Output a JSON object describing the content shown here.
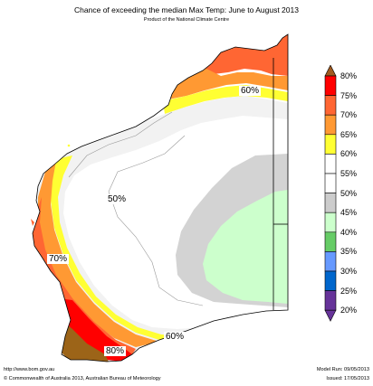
{
  "header": {
    "title": "Chance of exceeding the median Max Temp: June to August 2013",
    "subtitle": "Product of the National Climate Centre"
  },
  "map": {
    "labels": [
      "60%",
      "50%",
      "70%",
      "60%",
      "80%"
    ]
  },
  "legend": {
    "bins": [
      {
        "label": "80%",
        "color": "#ff0000"
      },
      {
        "label": "75%",
        "color": "#ff6633"
      },
      {
        "label": "70%",
        "color": "#ff9933"
      },
      {
        "label": "65%",
        "color": "#ffff33"
      },
      {
        "label": "60%",
        "color": "#ffffff"
      },
      {
        "label": "55%",
        "color": "#ffffff"
      },
      {
        "label": "50%",
        "color": "#cccccc"
      },
      {
        "label": "45%",
        "color": "#ccffcc"
      },
      {
        "label": "40%",
        "color": "#66cc66"
      },
      {
        "label": "35%",
        "color": "#6699ff"
      },
      {
        "label": "30%",
        "color": "#0066cc"
      },
      {
        "label": "25%",
        "color": "#663399"
      },
      {
        "label": "20%",
        "color": ""
      }
    ],
    "top_arrow_color": "#a05a20",
    "bottom_arrow_color": "#663399"
  },
  "colors": {
    "brown": "#9c6418",
    "red": "#ff0000",
    "orange_red": "#ff6633",
    "orange": "#ff9933",
    "yellow": "#ffff33",
    "light_grey": "#f2f2f2",
    "grey": "#d3d3d3",
    "light_green": "#ccffcc"
  },
  "footer": {
    "url": "http://www.bom.gov.au",
    "copyright": "©  Commonwealth of Australia 2013, Australian Bureau of Meteorology",
    "model_run": "Model Run: 09/05/2013",
    "issued": "Issued: 17/05/2013"
  }
}
